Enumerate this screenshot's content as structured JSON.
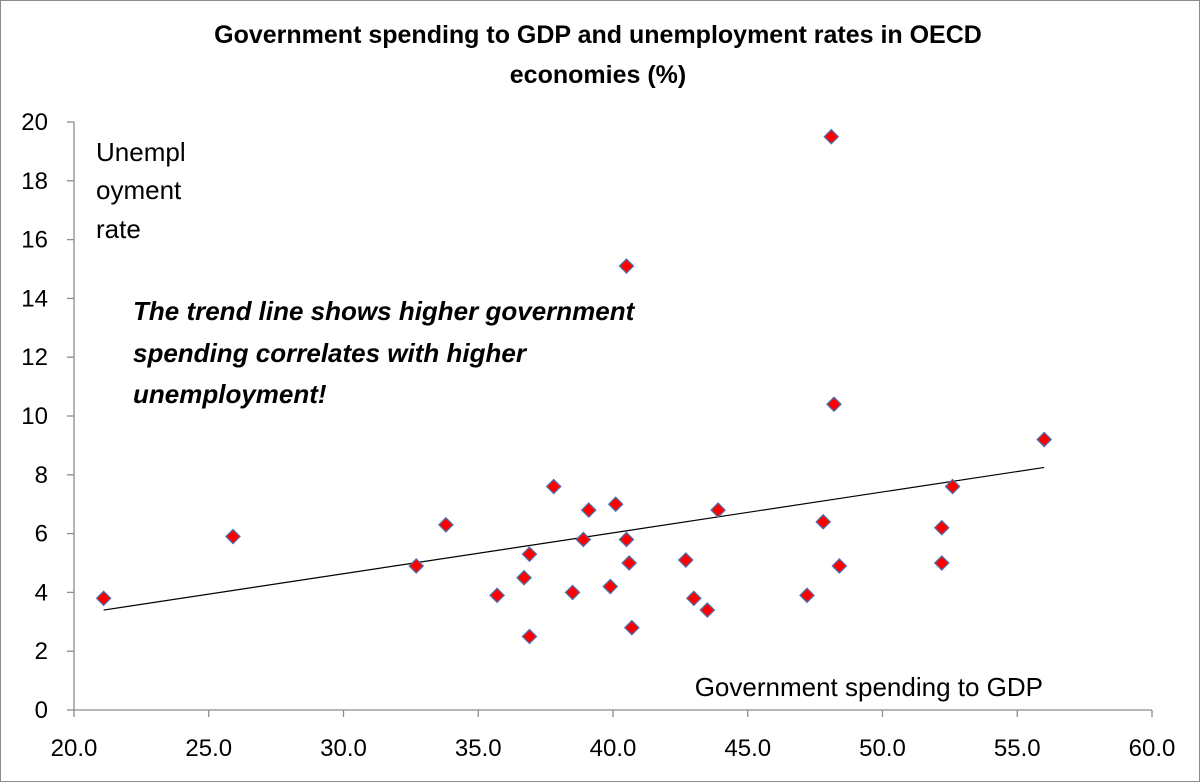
{
  "chart_data": {
    "type": "scatter",
    "title_lines": [
      "Government spending to GDP and unemployment rates in OECD",
      "economies (%)"
    ],
    "xlabel": "Government spending to GDP",
    "ylabel_lines": [
      "Unempl",
      "oyment",
      "rate"
    ],
    "annotation_lines": [
      "The trend line  shows higher government",
      "spending correlates  with higher",
      "unemployment!"
    ],
    "xlim": [
      20,
      60
    ],
    "ylim": [
      0,
      20
    ],
    "x_ticks": [
      "20.0",
      "25.0",
      "30.0",
      "35.0",
      "40.0",
      "45.0",
      "50.0",
      "55.0",
      "60.0"
    ],
    "y_ticks": [
      "0",
      "2",
      "4",
      "6",
      "8",
      "10",
      "12",
      "14",
      "16",
      "18",
      "20"
    ],
    "points": [
      {
        "x": 21.1,
        "y": 3.8
      },
      {
        "x": 25.9,
        "y": 5.9
      },
      {
        "x": 32.7,
        "y": 4.9
      },
      {
        "x": 33.8,
        "y": 6.3
      },
      {
        "x": 35.7,
        "y": 3.9
      },
      {
        "x": 36.7,
        "y": 4.5
      },
      {
        "x": 36.9,
        "y": 5.3
      },
      {
        "x": 36.9,
        "y": 2.5
      },
      {
        "x": 37.8,
        "y": 7.6
      },
      {
        "x": 38.5,
        "y": 4.0
      },
      {
        "x": 38.9,
        "y": 5.8
      },
      {
        "x": 39.1,
        "y": 6.8
      },
      {
        "x": 39.9,
        "y": 4.2
      },
      {
        "x": 40.1,
        "y": 7.0
      },
      {
        "x": 40.5,
        "y": 5.8
      },
      {
        "x": 40.5,
        "y": 15.1
      },
      {
        "x": 40.6,
        "y": 5.0
      },
      {
        "x": 40.7,
        "y": 2.8
      },
      {
        "x": 42.7,
        "y": 5.1
      },
      {
        "x": 43.0,
        "y": 3.8
      },
      {
        "x": 43.5,
        "y": 3.4
      },
      {
        "x": 43.9,
        "y": 6.8
      },
      {
        "x": 47.2,
        "y": 3.9
      },
      {
        "x": 47.8,
        "y": 6.4
      },
      {
        "x": 48.1,
        "y": 19.5
      },
      {
        "x": 48.2,
        "y": 10.4
      },
      {
        "x": 48.4,
        "y": 4.9
      },
      {
        "x": 52.2,
        "y": 6.2
      },
      {
        "x": 52.2,
        "y": 5.0
      },
      {
        "x": 52.6,
        "y": 7.6
      },
      {
        "x": 56.0,
        "y": 9.2
      }
    ],
    "trendline": {
      "x": [
        21.1,
        56.0
      ],
      "y": [
        3.4,
        8.25
      ]
    },
    "marker_color": "#ff0000",
    "marker_edge_color": "#4f6fa8",
    "trendline_color": "#000000"
  }
}
